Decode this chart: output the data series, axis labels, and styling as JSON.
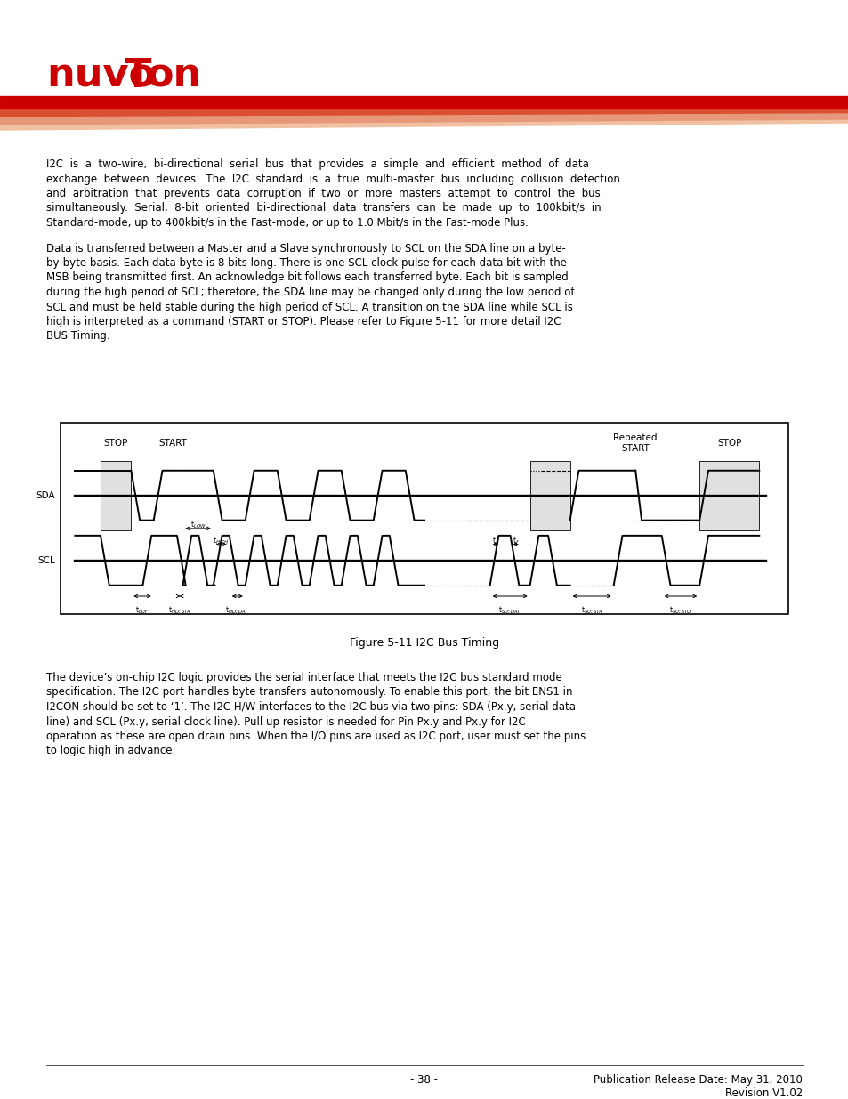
{
  "page_width": 9.54,
  "page_height": 12.35,
  "bg_color": "#ffffff",
  "para1_line1": "I2C  is  a  two-wire,  bi-directional  serial  bus  that  provides  a  simple  and  efficient  method  of  data",
  "para1_line2": "exchange  between  devices.  The  I2C  standard  is  a  true  multi-master  bus  including  collision  detection",
  "para1_line3": "and  arbitration  that  prevents  data  corruption  if  two  or  more  masters  attempt  to  control  the  bus",
  "para1_line4": "simultaneously.  Serial,  8-bit  oriented  bi-directional  data  transfers  can  be  made  up  to  100kbit/s  in",
  "para1_line5": "Standard-mode, up to 400kbit/s in the Fast-mode, or up to 1.0 Mbit/s in the Fast-mode Plus.",
  "para2_line1": "Data is transferred between a Master and a Slave synchronously to SCL on the SDA line on a byte-",
  "para2_line2": "by-byte basis. Each data byte is 8 bits long. There is one SCL clock pulse for each data bit with the",
  "para2_line3": "MSB being transmitted first. An acknowledge bit follows each transferred byte. Each bit is sampled",
  "para2_line4": "during the high period of SCL; therefore, the SDA line may be changed only during the low period of",
  "para2_line5": "SCL and must be held stable during the high period of SCL. A transition on the SDA line while SCL is",
  "para2_line6": "high is interpreted as a command (START or STOP). Please refer to Figure 5-11 for more detail I2C",
  "para2_line7": "BUS Timing.",
  "para3_line1": "The device’s on-chip I2C logic provides the serial interface that meets the I2C bus standard mode",
  "para3_line2": "specification. The I2C port handles byte transfers autonomously. To enable this port, the bit ENS1 in",
  "para3_line3": "I2CON should be set to ‘1’. The I2C H/W interfaces to the I2C bus via two pins: SDA (Px.y, serial data",
  "para3_line4": "line) and SCL (Px.y, serial clock line). Pull up resistor is needed for Pin Px.y and Px.y for I2C",
  "para3_line5": "operation as these are open drain pins. When the I/O pins are used as I2C port, user must set the pins",
  "para3_line6": "to logic high in advance.",
  "fig_caption": "Figure 5-11 I2C Bus Timing",
  "footer_left": "- 38 -",
  "footer_right_line1": "Publication Release Date: May 31, 2010",
  "footer_right_line2": "Revision V1.02",
  "logo_red": "#cc0000",
  "stripe_red": "#cc0000",
  "stripe_mid": "#d94f30",
  "stripe_light": "#e8987a",
  "stripe_pale": "#f0c0a0"
}
